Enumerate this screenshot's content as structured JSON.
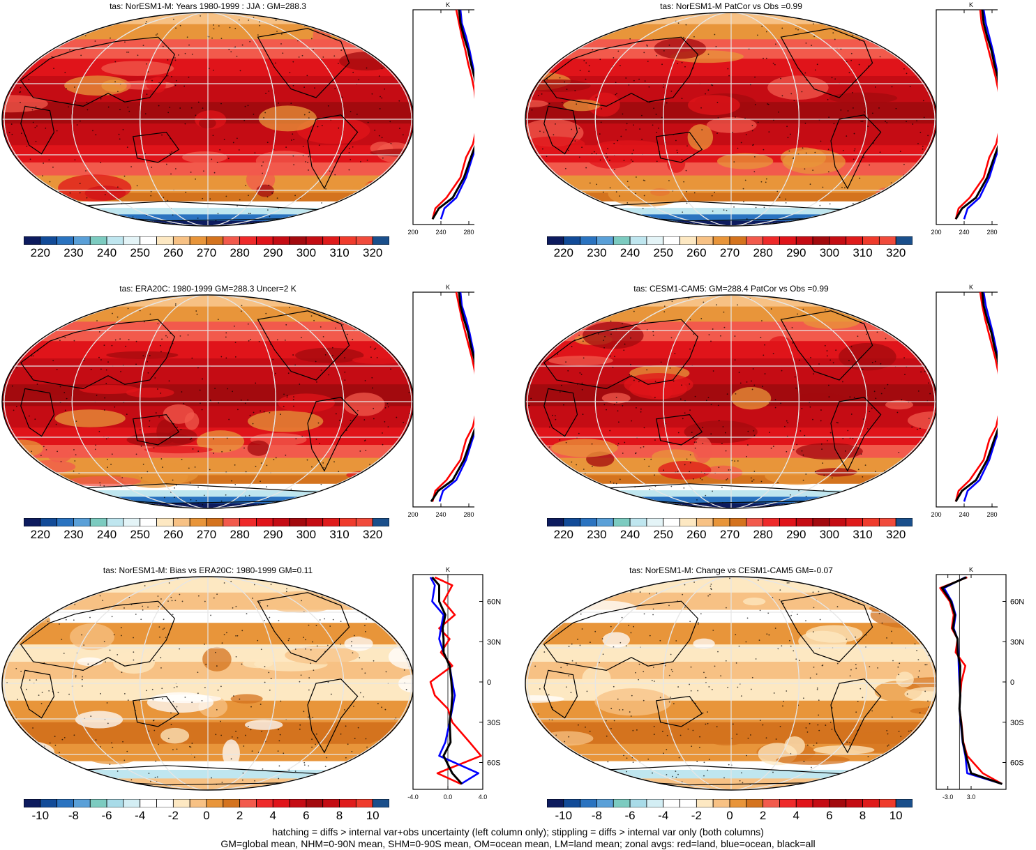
{
  "panels": [
    {
      "id": "p1",
      "title": "tas: NorESM1-M: Years 1980-1999 : JJA : GM=288.3",
      "kind": "abs"
    },
    {
      "id": "p2",
      "title": "tas: NorESM1-M PatCor vs Obs =0.99",
      "kind": "abs"
    },
    {
      "id": "p3",
      "title": "tas: ERA20C: 1980-1999 GM=288.3 Uncer=2 K",
      "kind": "abs"
    },
    {
      "id": "p4",
      "title": "tas: CESM1-CAM5: GM=288.4 PatCor vs Obs =0.99",
      "kind": "abs"
    },
    {
      "id": "p5",
      "title": "tas: NorESM1-M: Bias vs ERA20C: 1980-1999 GM=0.11",
      "kind": "diff"
    },
    {
      "id": "p6",
      "title": "tas: NorESM1-M: Change vs CESM1-CAM5 GM=-0.07",
      "kind": "diff"
    }
  ],
  "colorbar_abs": {
    "labels": [
      "220",
      "230",
      "240",
      "250",
      "260",
      "270",
      "280",
      "290",
      "300",
      "310",
      "320"
    ],
    "colors": [
      "#0d1b5e",
      "#124b98",
      "#2a73c0",
      "#5aa0d8",
      "#7ccbc0",
      "#bfe6ef",
      "#e4f4f7",
      "#ffffff",
      "#fde8c2",
      "#f7c184",
      "#e8953a",
      "#d4731e",
      "#f25a4c",
      "#ee2a2a",
      "#e0141a",
      "#c50c14",
      "#a30a0e",
      "#c40d13",
      "#df1b1b",
      "#ef3b2c",
      "#f04b3c",
      "#1a4f8b"
    ]
  },
  "colorbar_diff": {
    "labels": [
      "-10",
      "-8",
      "-6",
      "-4",
      "-2",
      "0",
      "2",
      "4",
      "6",
      "8",
      "10"
    ],
    "colors": [
      "#0d1b5e",
      "#124b98",
      "#2a73c0",
      "#5aa0d8",
      "#7ccbc0",
      "#a8dbe8",
      "#d3eef4",
      "#ffffff",
      "#ffffff",
      "#fde8c2",
      "#f7c184",
      "#e8953a",
      "#d4731e",
      "#f25a4c",
      "#ee2a2a",
      "#e0141a",
      "#c50c14",
      "#a30a0e",
      "#c40d13",
      "#df1b1b",
      "#ef3b2c",
      "#1a4f8b"
    ]
  },
  "zonal_axes": {
    "abs_x_ticks": [
      "200",
      "240",
      "280"
    ],
    "bias_x_ticks": [
      "-4.0",
      "0.0",
      "4.0"
    ],
    "change_x_ticks": [
      "-3.0",
      "3.0"
    ],
    "lat_ticks": [
      "60N",
      "30N",
      "0",
      "30S",
      "60S"
    ],
    "unit": "K"
  },
  "chart_data": [
    {
      "type": "line",
      "title": "tas: NorESM1-M: Years 1980-1999 : JJA : GM=288.3",
      "xlabel": "K",
      "xlim": [
        200,
        300
      ],
      "ylim": [
        -80,
        80
      ],
      "series": [
        {
          "name": "red=land",
          "x": [
            262,
            266,
            270,
            275,
            279,
            284,
            288,
            290,
            292,
            290,
            286,
            276,
            268,
            248,
            232,
            228
          ],
          "y": [
            80,
            70,
            60,
            50,
            40,
            30,
            20,
            10,
            0,
            -10,
            -20,
            -30,
            -45,
            -60,
            -68,
            -76
          ]
        },
        {
          "name": "blue=ocean",
          "x": [
            268,
            270,
            276,
            281,
            285,
            289,
            292,
            294,
            298,
            297,
            292,
            285,
            276,
            262,
            245,
            240
          ],
          "y": [
            80,
            70,
            60,
            50,
            40,
            30,
            20,
            10,
            0,
            -10,
            -20,
            -30,
            -45,
            -60,
            -68,
            -76
          ]
        },
        {
          "name": "black=all",
          "x": [
            266,
            268,
            273,
            279,
            283,
            288,
            291,
            293,
            296,
            295,
            290,
            283,
            273,
            257,
            237,
            228
          ],
          "y": [
            80,
            70,
            60,
            50,
            40,
            30,
            20,
            10,
            0,
            -10,
            -20,
            -30,
            -45,
            -60,
            -68,
            -76
          ]
        }
      ]
    },
    {
      "type": "line",
      "title": "tas: NorESM1-M PatCor vs Obs =0.99",
      "xlabel": "K",
      "xlim": [
        200,
        300
      ],
      "ylim": [
        -80,
        80
      ],
      "series": [
        {
          "name": "red=land",
          "x": [
            263,
            265,
            270,
            275,
            280,
            285,
            289,
            291,
            293,
            290,
            286,
            276,
            268,
            248,
            232,
            228
          ],
          "y": [
            80,
            70,
            60,
            50,
            40,
            30,
            20,
            10,
            0,
            -10,
            -20,
            -30,
            -45,
            -60,
            -68,
            -76
          ]
        },
        {
          "name": "blue=ocean",
          "x": [
            268,
            271,
            276,
            281,
            285,
            289,
            292,
            294,
            298,
            297,
            292,
            285,
            276,
            262,
            245,
            240
          ],
          "y": [
            80,
            70,
            60,
            50,
            40,
            30,
            20,
            10,
            0,
            -10,
            -20,
            -30,
            -45,
            -60,
            -68,
            -76
          ]
        },
        {
          "name": "black=all",
          "x": [
            266,
            268,
            273,
            279,
            283,
            288,
            291,
            293,
            296,
            295,
            290,
            283,
            273,
            257,
            237,
            228
          ],
          "y": [
            80,
            70,
            60,
            50,
            40,
            30,
            20,
            10,
            0,
            -10,
            -20,
            -30,
            -45,
            -60,
            -68,
            -76
          ]
        }
      ]
    },
    {
      "type": "line",
      "title": "tas: ERA20C: 1980-1999 GM=288.3 Uncer=2 K",
      "xlabel": "K",
      "xlim": [
        200,
        300
      ],
      "ylim": [
        -80,
        80
      ],
      "series": [
        {
          "name": "red=land",
          "x": [
            262,
            266,
            270,
            275,
            280,
            285,
            289,
            291,
            292,
            290,
            286,
            276,
            268,
            248,
            232,
            228
          ],
          "y": [
            80,
            70,
            60,
            50,
            40,
            30,
            20,
            10,
            0,
            -10,
            -20,
            -30,
            -45,
            -60,
            -68,
            -76
          ]
        },
        {
          "name": "blue=ocean",
          "x": [
            268,
            270,
            276,
            281,
            285,
            289,
            292,
            294,
            298,
            297,
            292,
            285,
            276,
            262,
            243,
            238
          ],
          "y": [
            80,
            70,
            60,
            50,
            40,
            30,
            20,
            10,
            0,
            -10,
            -20,
            -30,
            -45,
            -60,
            -68,
            -76
          ]
        },
        {
          "name": "black=all",
          "x": [
            266,
            268,
            273,
            279,
            283,
            288,
            291,
            293,
            296,
            295,
            290,
            283,
            273,
            257,
            236,
            226
          ],
          "y": [
            80,
            70,
            60,
            50,
            40,
            30,
            20,
            10,
            0,
            -10,
            -20,
            -30,
            -45,
            -60,
            -68,
            -76
          ]
        }
      ]
    },
    {
      "type": "line",
      "title": "tas: CESM1-CAM5: GM=288.4 PatCor vs Obs =0.99",
      "xlabel": "K",
      "xlim": [
        200,
        300
      ],
      "ylim": [
        -80,
        80
      ],
      "series": [
        {
          "name": "red=land",
          "x": [
            263,
            266,
            270,
            275,
            280,
            285,
            289,
            291,
            292,
            290,
            286,
            276,
            268,
            248,
            232,
            228
          ],
          "y": [
            80,
            70,
            60,
            50,
            40,
            30,
            20,
            10,
            0,
            -10,
            -20,
            -30,
            -45,
            -60,
            -68,
            -76
          ]
        },
        {
          "name": "blue=ocean",
          "x": [
            268,
            271,
            276,
            281,
            285,
            289,
            292,
            294,
            298,
            297,
            292,
            285,
            276,
            262,
            245,
            240
          ],
          "y": [
            80,
            70,
            60,
            50,
            40,
            30,
            20,
            10,
            0,
            -10,
            -20,
            -30,
            -45,
            -60,
            -68,
            -76
          ]
        },
        {
          "name": "black=all",
          "x": [
            266,
            268,
            273,
            279,
            283,
            288,
            291,
            293,
            296,
            295,
            290,
            283,
            273,
            257,
            237,
            228
          ],
          "y": [
            80,
            70,
            60,
            50,
            40,
            30,
            20,
            10,
            0,
            -10,
            -20,
            -30,
            -45,
            -60,
            -68,
            -76
          ]
        }
      ]
    },
    {
      "type": "line",
      "title": "tas: NorESM1-M: Bias vs ERA20C: 1980-1999 GM=0.11",
      "xlabel": "K",
      "xlim": [
        -4,
        4
      ],
      "ylim": [
        -80,
        80
      ],
      "series": [
        {
          "name": "red=land",
          "x": [
            -1.5,
            0.5,
            -0.5,
            0.8,
            -1.0,
            0.2,
            -0.8,
            0.5,
            -2.0,
            -1.5,
            0.0,
            0.5,
            2.5,
            3.8,
            -1.2,
            1.5
          ],
          "y": [
            78,
            72,
            60,
            50,
            40,
            32,
            22,
            12,
            0,
            -10,
            -20,
            -30,
            -45,
            -55,
            -68,
            -76
          ]
        },
        {
          "name": "blue=ocean",
          "x": [
            -2.0,
            -1.5,
            -1.8,
            -0.5,
            -0.8,
            -1.0,
            -0.5,
            0.2,
            0.5,
            0.8,
            0.5,
            0.2,
            -0.3,
            -1.0,
            3.5,
            1.5
          ],
          "y": [
            78,
            72,
            60,
            50,
            40,
            32,
            22,
            12,
            0,
            -10,
            -20,
            -30,
            -45,
            -55,
            -68,
            -76
          ]
        },
        {
          "name": "black=all",
          "x": [
            -1.8,
            -1.0,
            -1.0,
            -0.3,
            -0.6,
            -0.5,
            -0.5,
            0.2,
            0.4,
            0.5,
            0.4,
            0.2,
            0.3,
            -0.5,
            0.5,
            1.6
          ],
          "y": [
            78,
            72,
            60,
            50,
            40,
            32,
            22,
            12,
            0,
            -10,
            -20,
            -30,
            -45,
            -55,
            -68,
            -76
          ]
        }
      ]
    },
    {
      "type": "line",
      "title": "tas: NorESM1-M: Change vs CESM1-CAM5 GM=-0.07",
      "xlabel": "K",
      "xlim": [
        -6,
        12
      ],
      "ylim": [
        -80,
        80
      ],
      "series": [
        {
          "name": "red=land",
          "x": [
            2.0,
            -5.0,
            -2.5,
            -1.5,
            -2.0,
            -0.5,
            -1.0,
            1.5,
            0.5,
            0.2,
            0.0,
            0.5,
            1.0,
            2.0,
            6.0,
            11.0
          ],
          "y": [
            78,
            70,
            60,
            50,
            40,
            32,
            22,
            12,
            0,
            -10,
            -20,
            -30,
            -45,
            -55,
            -68,
            -76
          ]
        },
        {
          "name": "blue=ocean",
          "x": [
            1.5,
            -4.0,
            -2.0,
            -1.0,
            -1.5,
            -0.5,
            -0.3,
            -0.2,
            0.0,
            0.2,
            0.0,
            0.3,
            0.8,
            1.5,
            2.0,
            11.0
          ],
          "y": [
            78,
            70,
            60,
            50,
            40,
            32,
            22,
            12,
            0,
            -10,
            -20,
            -30,
            -45,
            -55,
            -68,
            -76
          ]
        },
        {
          "name": "black=all",
          "x": [
            1.8,
            -4.5,
            -2.2,
            -1.2,
            -1.7,
            -0.5,
            -0.5,
            0.2,
            0.1,
            0.2,
            0.0,
            0.4,
            0.9,
            1.7,
            3.0,
            11.0
          ],
          "y": [
            78,
            70,
            60,
            50,
            40,
            32,
            22,
            12,
            0,
            -10,
            -20,
            -30,
            -45,
            -55,
            -68,
            -76
          ]
        }
      ]
    }
  ],
  "footer": {
    "line1": "hatching = diffs > internal var+obs uncertainty (left column only); stippling = diffs > internal var only (both columns)",
    "line2": "GM=global mean, NHM=0-90N mean, SHM=0-90S mean, OM=ocean mean, LM=land mean; zonal avgs: red=land, blue=ocean, black=all"
  }
}
